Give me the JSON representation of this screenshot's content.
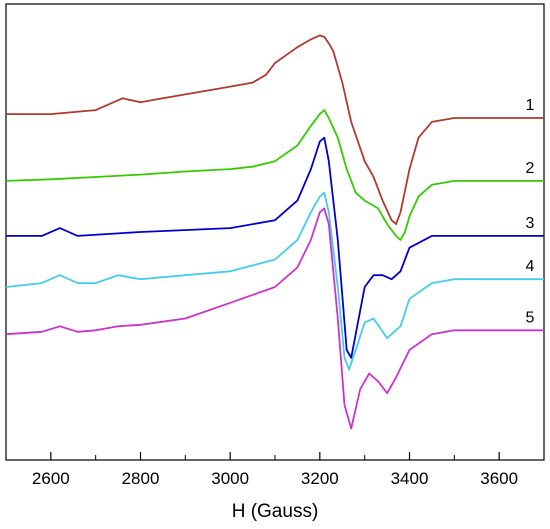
{
  "chart_data": {
    "type": "line",
    "title": "",
    "xlabel": "H (Gauss)",
    "ylabel": "",
    "xlim": [
      2500,
      3700
    ],
    "xticks": [
      2600,
      2800,
      3000,
      3200,
      3400,
      3600
    ],
    "grid": false,
    "legend": "none",
    "series": [
      {
        "name": "1",
        "color": "#b03a2e",
        "x": [
          2500,
          2600,
          2700,
          2760,
          2800,
          2850,
          2900,
          2950,
          3000,
          3050,
          3080,
          3100,
          3150,
          3180,
          3200,
          3210,
          3220,
          3230,
          3250,
          3270,
          3300,
          3320,
          3340,
          3360,
          3370,
          3380,
          3400,
          3420,
          3450,
          3500,
          3600,
          3700
        ],
        "y": [
          4.1,
          4.1,
          4.15,
          4.3,
          4.25,
          4.3,
          4.35,
          4.4,
          4.45,
          4.5,
          4.6,
          4.75,
          4.95,
          5.05,
          5.1,
          5.08,
          5.0,
          4.9,
          4.5,
          4.0,
          3.5,
          3.3,
          3.0,
          2.75,
          2.7,
          2.85,
          3.4,
          3.8,
          4.0,
          4.05,
          4.05,
          4.05
        ]
      },
      {
        "name": "2",
        "color": "#33cc00",
        "x": [
          2500,
          2600,
          2700,
          2800,
          2900,
          3000,
          3050,
          3100,
          3150,
          3180,
          3200,
          3210,
          3220,
          3240,
          3260,
          3280,
          3300,
          3330,
          3350,
          3370,
          3380,
          3390,
          3400,
          3420,
          3450,
          3500,
          3600,
          3700
        ],
        "y": [
          3.25,
          3.27,
          3.3,
          3.33,
          3.37,
          3.4,
          3.43,
          3.5,
          3.7,
          3.95,
          4.1,
          4.15,
          4.05,
          3.8,
          3.4,
          3.1,
          3.0,
          2.9,
          2.7,
          2.55,
          2.5,
          2.6,
          2.8,
          3.05,
          3.2,
          3.25,
          3.25,
          3.25
        ]
      },
      {
        "name": "3",
        "color": "#0000cc",
        "x": [
          2500,
          2580,
          2620,
          2660,
          2800,
          3000,
          3100,
          3150,
          3180,
          3200,
          3210,
          3220,
          3240,
          3260,
          3270,
          3290,
          3300,
          3320,
          3340,
          3360,
          3380,
          3400,
          3450,
          3500,
          3600,
          3700
        ],
        "y": [
          2.55,
          2.55,
          2.65,
          2.55,
          2.6,
          2.65,
          2.75,
          3.0,
          3.4,
          3.75,
          3.8,
          3.5,
          2.5,
          1.1,
          1.0,
          1.6,
          1.9,
          2.05,
          2.05,
          2.0,
          2.1,
          2.4,
          2.55,
          2.55,
          2.55,
          2.55
        ]
      },
      {
        "name": "4",
        "color": "#44ccee",
        "x": [
          2500,
          2580,
          2620,
          2660,
          2700,
          2750,
          2800,
          2900,
          3000,
          3100,
          3150,
          3180,
          3200,
          3210,
          3220,
          3240,
          3255,
          3265,
          3280,
          3300,
          3320,
          3350,
          3380,
          3400,
          3450,
          3500,
          3600,
          3700
        ],
        "y": [
          1.9,
          1.95,
          2.05,
          1.95,
          1.95,
          2.05,
          2.0,
          2.05,
          2.1,
          2.25,
          2.5,
          2.85,
          3.05,
          3.1,
          2.85,
          1.9,
          1.0,
          0.85,
          1.1,
          1.45,
          1.5,
          1.25,
          1.4,
          1.75,
          1.95,
          2.0,
          2.0,
          2.0
        ]
      },
      {
        "name": "5",
        "color": "#cc33cc",
        "x": [
          2500,
          2580,
          2620,
          2660,
          2700,
          2750,
          2800,
          2900,
          3000,
          3100,
          3150,
          3180,
          3200,
          3210,
          3220,
          3240,
          3255,
          3270,
          3290,
          3310,
          3330,
          3350,
          3370,
          3400,
          3450,
          3500,
          3600,
          3700
        ],
        "y": [
          1.3,
          1.33,
          1.4,
          1.33,
          1.35,
          1.4,
          1.42,
          1.5,
          1.7,
          1.9,
          2.15,
          2.5,
          2.85,
          2.9,
          2.7,
          1.5,
          0.4,
          0.1,
          0.6,
          0.8,
          0.7,
          0.55,
          0.75,
          1.1,
          1.3,
          1.35,
          1.35,
          1.35
        ]
      }
    ]
  }
}
